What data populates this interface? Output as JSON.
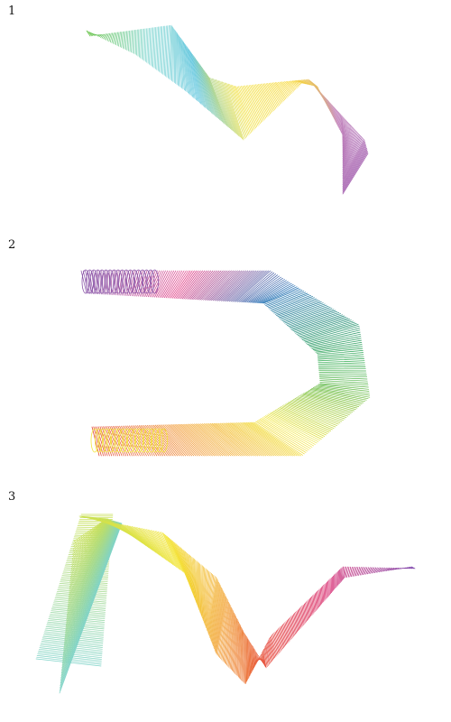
{
  "panels": [
    {
      "label": "1",
      "shape": "twisted-ribbon-sweep",
      "gradient_colors": [
        "#5fbf3f",
        "#7fd6cf",
        "#63c7df",
        "#f2e34e",
        "#f7d733",
        "#c990c2",
        "#9a4ea6"
      ]
    },
    {
      "label": "2",
      "shape": "u-shaped-tube-sweep",
      "gradient_colors": [
        "#8a55a8",
        "#e0337e",
        "#1f6fb5",
        "#2aa84a",
        "#f2e63a",
        "#f29a2a",
        "#e03a2a"
      ]
    },
    {
      "label": "3",
      "shape": "folded-band-sweep",
      "gradient_colors": [
        "#7fd3c8",
        "#c9e052",
        "#f4e63a",
        "#f2a02e",
        "#e43a2f",
        "#d5226c",
        "#7a3ea8"
      ]
    }
  ]
}
